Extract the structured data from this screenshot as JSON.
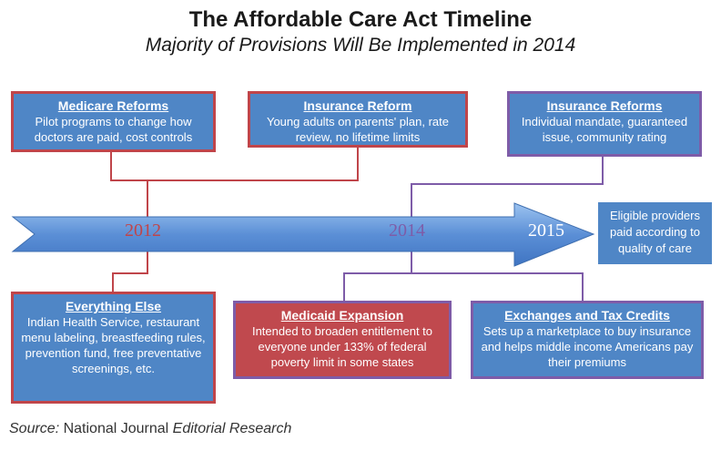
{
  "title": "The Affordable Care Act Timeline",
  "subtitle": "Majority of Provisions Will Be Implemented in 2014",
  "years": [
    "2012",
    "2014",
    "2015"
  ],
  "colors": {
    "box_fill": "#4f86c6",
    "red": "#c0454a",
    "purple": "#7e5ca8",
    "arrow": "#5b8fd6",
    "year_2012": "#c0454a",
    "year_2014": "#7e5ca8",
    "year_2015": "#ffffff"
  },
  "boxes": {
    "medicare": {
      "heading": "Medicare Reforms",
      "body": "Pilot programs to change how doctors are paid, cost controls"
    },
    "insurance_reform": {
      "heading": "Insurance Reform",
      "body": "Young adults on parents' plan, rate review, no lifetime limits"
    },
    "insurance_reforms": {
      "heading": "Insurance Reforms",
      "body": "Individual mandate, guaranteed issue, community rating"
    },
    "everything_else": {
      "heading": "Everything Else",
      "body": "Indian Health Service, restaurant menu labeling, breastfeeding rules, prevention fund, free preventative screenings, etc."
    },
    "medicaid": {
      "heading": "Medicaid Expansion",
      "body": "Intended to broaden entitlement to everyone under 133% of federal poverty limit in some states"
    },
    "exchanges": {
      "heading": "Exchanges and Tax Credits",
      "body": "Sets up a marketplace to buy insurance and helps middle income Americans pay their premiums"
    }
  },
  "side_note": "Eligible providers paid according to quality of care",
  "source": {
    "prefix": "Source:",
    "org": "National Journal",
    "dept": "Editorial Research"
  }
}
